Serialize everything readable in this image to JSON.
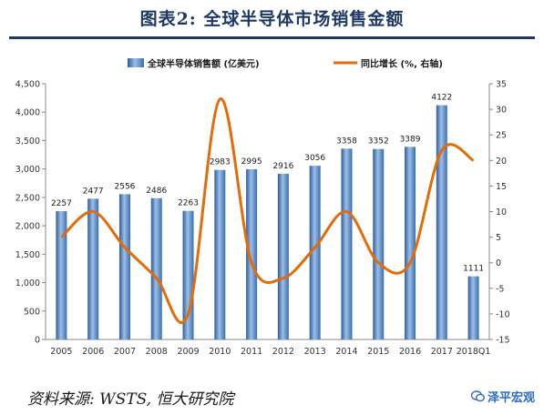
{
  "figure": {
    "title": "图表2:    全球半导体市场销售金额",
    "source": "资料来源: WSTS, 恒大研究院",
    "watermark": "泽平宏观"
  },
  "chart_data": {
    "type": "bar",
    "categories": [
      "2005",
      "2006",
      "2007",
      "2008",
      "2009",
      "2010",
      "2011",
      "2012",
      "2013",
      "2014",
      "2015",
      "2016",
      "2017",
      "2018Q1"
    ],
    "series": [
      {
        "name": "全球半导体销售额 (亿美元)",
        "type": "bar",
        "axis": "left",
        "values": [
          2257,
          2477,
          2556,
          2486,
          2263,
          2983,
          2995,
          2916,
          3056,
          3358,
          3352,
          3389,
          4122,
          1111
        ],
        "color": "#4a7ebb"
      },
      {
        "name": "同比增长 (%, 右轴)",
        "type": "line",
        "axis": "right",
        "values": [
          5,
          10,
          3,
          -3,
          -10,
          32,
          0,
          -3,
          3,
          10,
          0,
          0,
          22,
          20
        ],
        "color": "#e36c09"
      }
    ],
    "left_axis": {
      "ylim": [
        0,
        4500
      ],
      "ticks": [
        "0",
        "500",
        "1,000",
        "1,500",
        "2,000",
        "2,500",
        "3,000",
        "3,500",
        "4,000",
        "4,500"
      ]
    },
    "right_axis": {
      "ylim": [
        -15,
        35
      ],
      "ticks": [
        "-15",
        "-10",
        "-5",
        "0",
        "5",
        "10",
        "15",
        "20",
        "25",
        "30",
        "35"
      ]
    },
    "data_labels": [
      "2257",
      "2477",
      "2556",
      "2486",
      "2263",
      "2983",
      "2995",
      "2916",
      "3056",
      "3358",
      "3352",
      "3389",
      "4122",
      "1111"
    ],
    "legend_position": "top",
    "grid": false
  }
}
